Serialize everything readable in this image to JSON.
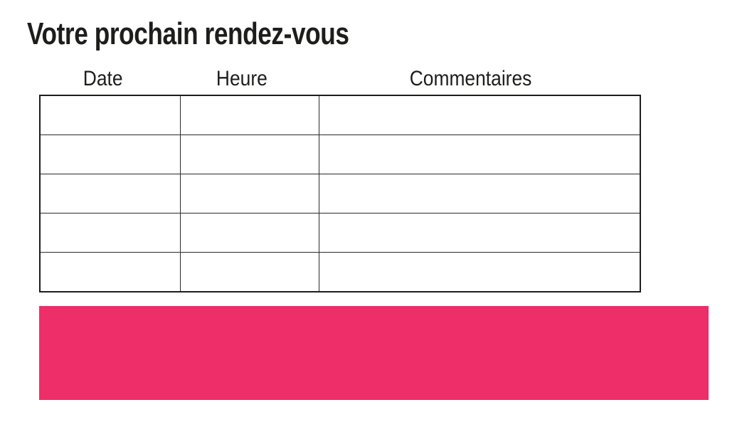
{
  "page": {
    "title": "Votre prochain rendez-vous"
  },
  "table": {
    "columns": [
      "Date",
      "Heure",
      "Commentaires"
    ],
    "rows": [
      [
        "",
        "",
        ""
      ],
      [
        "",
        "",
        ""
      ],
      [
        "",
        "",
        ""
      ],
      [
        "",
        "",
        ""
      ],
      [
        "",
        "",
        ""
      ]
    ]
  },
  "banner": {
    "text": ""
  },
  "colors": {
    "accent_pink": "#ED2E68",
    "table_border": "#1d1d1b",
    "text": "#1d1d1b",
    "background": "#ffffff"
  }
}
